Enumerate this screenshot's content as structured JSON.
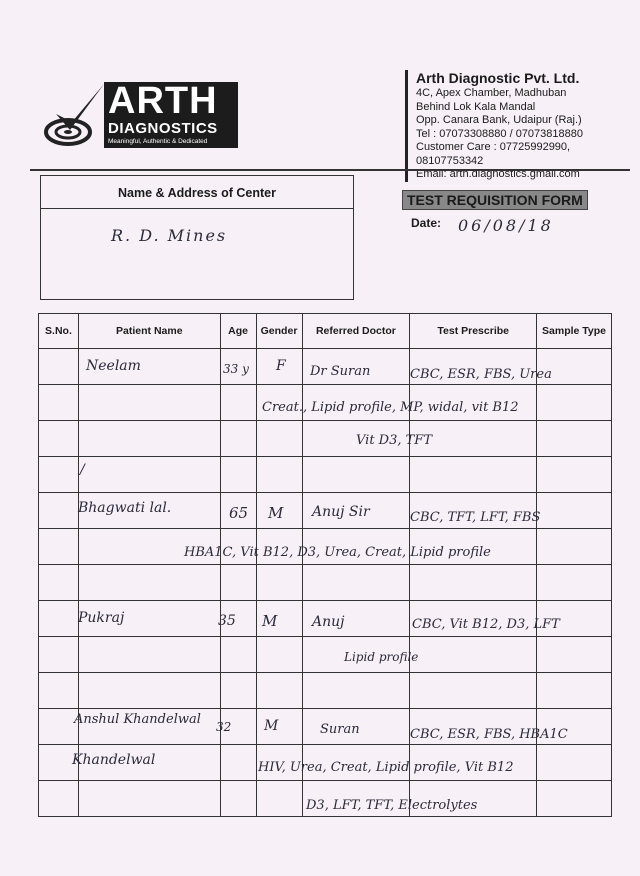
{
  "logo": {
    "brand": "ARTH",
    "sub": "DIAGNOSTICS",
    "tagline": "Meaningful, Authentic & Dedicated"
  },
  "company": {
    "name": "Arth Diagnostic Pvt. Ltd.",
    "lines": [
      "4C, Apex Chamber, Madhuban",
      "Behind Lok Kala Mandal",
      "Opp. Canara Bank, Udaipur (Raj.)",
      "Tel : 07073308880 / 07073818880",
      "Customer Care : 07725992990, 08107753342",
      "Email: arth.diagnostics.gmail.com"
    ]
  },
  "center": {
    "label": "Name & Address of Center",
    "value": "R. D. Mines"
  },
  "form_title": "TEST REQUISITION FORM",
  "date": {
    "label": "Date:",
    "value": "06/08/18"
  },
  "table": {
    "headers": [
      "S.No.",
      "Patient Name",
      "Age",
      "Gender",
      "Referred Doctor",
      "Test Prescribe",
      "Sample Type"
    ],
    "entries": [
      "Neelam",
      "33 y",
      "F",
      "Dr Suran",
      "CBC, ESR, FBS, Urea",
      "Creat., Lipid profile, MP, widal, vit B12",
      "Vit D3, TFT",
      "/",
      "Bhagwati lal.",
      "65",
      "M",
      "Anuj Sir",
      "CBC, TFT, LFT, FBS",
      "HBA1C, Vit B12, D3, Urea, Creat, Lipid profile",
      "Pukraj",
      "35",
      "M",
      "Anuj",
      "CBC, Vit B12, D3, LFT",
      "Lipid profile",
      "Anshul Khandelwal",
      "32",
      "M",
      "Suran",
      "CBC, ESR, FBS, HBA1C",
      "Khandelwal",
      "HIV, Urea, Creat, Lipid profile, Vit B12",
      "D3, LFT, TFT, Electrolytes"
    ]
  }
}
